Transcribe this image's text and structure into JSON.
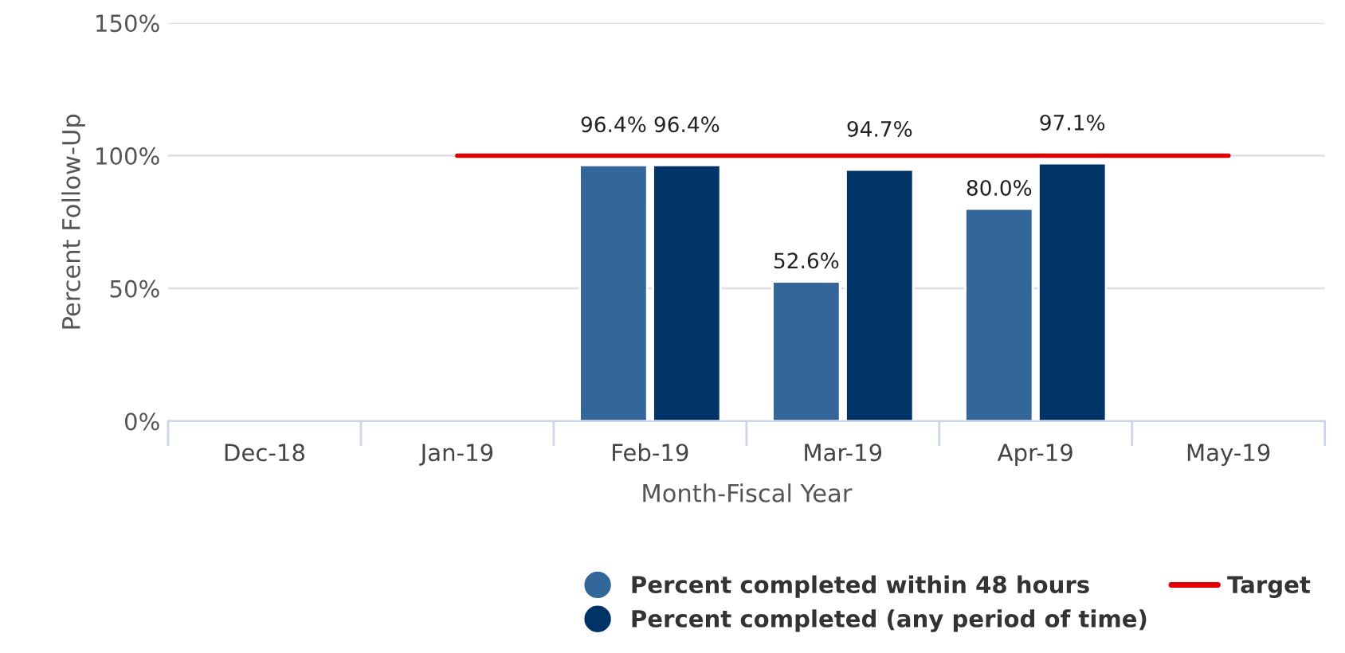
{
  "chart_data": {
    "type": "bar",
    "xlabel": "Month-Fiscal Year",
    "ylabel": "Percent Follow-Up",
    "categories": [
      "Dec-18",
      "Jan-19",
      "Feb-19",
      "Mar-19",
      "Apr-19",
      "May-19"
    ],
    "series": [
      {
        "name": "Percent completed within 48 hours",
        "color": "#336699",
        "values": [
          null,
          null,
          96.4,
          52.6,
          80.0,
          null
        ],
        "value_labels": [
          null,
          null,
          "96.4%",
          "52.6%",
          "80.0%",
          null
        ]
      },
      {
        "name": "Percent completed (any period of time)",
        "color": "#003366",
        "values": [
          null,
          null,
          96.4,
          94.7,
          97.1,
          null
        ],
        "value_labels": [
          null,
          null,
          "96.4%",
          "94.7%",
          "97.1%",
          null
        ]
      },
      {
        "name": "Target",
        "type": "line",
        "color": "#e00000",
        "values": [
          null,
          100,
          100,
          100,
          100,
          100
        ]
      }
    ],
    "ylim": [
      0,
      150
    ],
    "yticks": [
      {
        "value": 0,
        "label": "0%"
      },
      {
        "value": 50,
        "label": "50%"
      },
      {
        "value": 100,
        "label": "100%"
      },
      {
        "value": 150,
        "label": "150%"
      }
    ],
    "grid": "y",
    "legend": "bottom right"
  }
}
